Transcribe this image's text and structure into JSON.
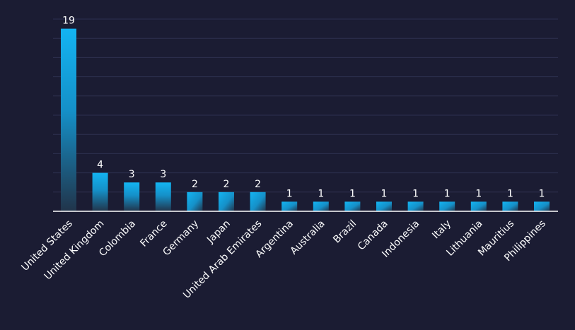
{
  "chart_data": {
    "type": "bar",
    "title": "",
    "xlabel": "",
    "ylabel": "",
    "categories": [
      "United States",
      "United Kingdom",
      "Colombia",
      "France",
      "Germany",
      "Japan",
      "United Arab Emirates",
      "Argentina",
      "Australia",
      "Brazil",
      "Canada",
      "Indonesia",
      "Italy",
      "Lithuania",
      "Mauritius",
      "Philippines"
    ],
    "values": [
      19,
      4,
      3,
      3,
      2,
      2,
      2,
      1,
      1,
      1,
      1,
      1,
      1,
      1,
      1,
      1
    ],
    "ylim": [
      0,
      20
    ],
    "grid": true,
    "data_labels": true,
    "legend": "none"
  },
  "colors": {
    "background": "#1b1c33",
    "bar_top": "#13b4f2",
    "bar_bottom": "#21344a",
    "grid": "#2e3050",
    "text": "#ffffff"
  }
}
